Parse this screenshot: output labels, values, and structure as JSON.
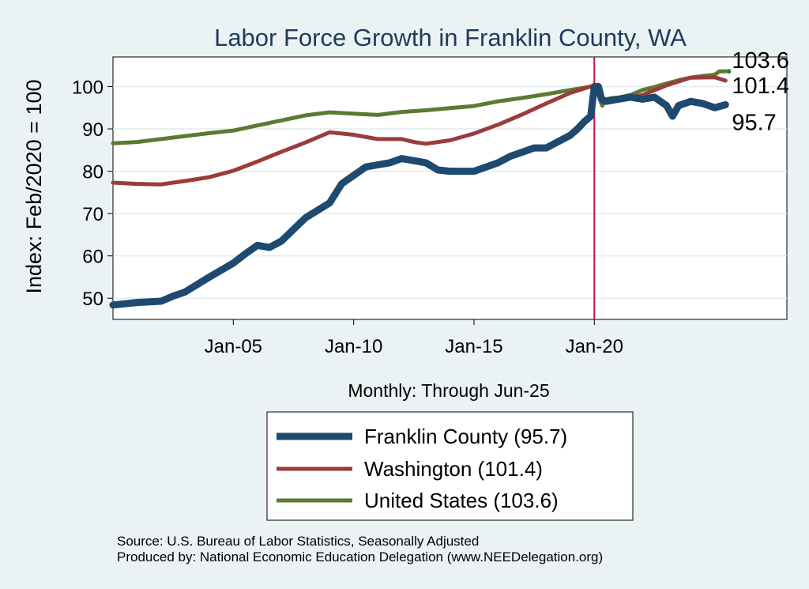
{
  "chart_data": {
    "type": "line",
    "title": "Labor Force Growth in Franklin  County, WA",
    "xlabel": "Monthly: Through Jun-25",
    "ylabel": "Index: Feb/2020 = 100",
    "ylim": [
      45,
      107
    ],
    "yticks": [
      50,
      60,
      70,
      80,
      90,
      100
    ],
    "xlim": [
      2000.0,
      2028.0
    ],
    "xticks": [
      {
        "x": 2005.0,
        "label": "Jan-05"
      },
      {
        "x": 2010.0,
        "label": "Jan-10"
      },
      {
        "x": 2015.0,
        "label": "Jan-15"
      },
      {
        "x": 2020.0,
        "label": "Jan-20"
      }
    ],
    "vline_x": 2020.0,
    "grid": "horizontal",
    "series": [
      {
        "name": "United States",
        "legend_label": "United States (103.6)",
        "end_label": "103.6",
        "color": "#5c7a32",
        "width": 5,
        "points": [
          [
            2000.0,
            86.6
          ],
          [
            2001.0,
            86.9
          ],
          [
            2002.0,
            87.6
          ],
          [
            2003.0,
            88.3
          ],
          [
            2004.0,
            89.0
          ],
          [
            2005.0,
            89.6
          ],
          [
            2006.0,
            90.8
          ],
          [
            2007.0,
            92.0
          ],
          [
            2008.0,
            93.2
          ],
          [
            2009.0,
            93.9
          ],
          [
            2010.0,
            93.6
          ],
          [
            2011.0,
            93.3
          ],
          [
            2012.0,
            94.0
          ],
          [
            2013.0,
            94.4
          ],
          [
            2014.0,
            94.9
          ],
          [
            2015.0,
            95.4
          ],
          [
            2016.0,
            96.5
          ],
          [
            2017.0,
            97.3
          ],
          [
            2018.0,
            98.2
          ],
          [
            2019.0,
            99.2
          ],
          [
            2020.0,
            100.1
          ],
          [
            2020.17,
            98.0
          ],
          [
            2020.33,
            95.5
          ],
          [
            2020.5,
            97.0
          ],
          [
            2020.75,
            97.3
          ],
          [
            2021.0,
            97.4
          ],
          [
            2021.5,
            98.0
          ],
          [
            2022.0,
            99.2
          ],
          [
            2022.5,
            99.9
          ],
          [
            2023.0,
            100.7
          ],
          [
            2023.5,
            101.5
          ],
          [
            2024.0,
            102.1
          ],
          [
            2024.5,
            102.5
          ],
          [
            2025.0,
            102.8
          ],
          [
            2025.2,
            103.6
          ],
          [
            2025.45,
            103.6
          ]
        ]
      },
      {
        "name": "Washington",
        "legend_label": "Washington (101.4)",
        "end_label": "101.4",
        "color": "#9b3b3b",
        "width": 5,
        "points": [
          [
            2000.0,
            77.3
          ],
          [
            2001.0,
            77.0
          ],
          [
            2002.0,
            76.9
          ],
          [
            2003.0,
            77.7
          ],
          [
            2004.0,
            78.6
          ],
          [
            2005.0,
            80.1
          ],
          [
            2006.0,
            82.3
          ],
          [
            2007.0,
            84.6
          ],
          [
            2008.0,
            86.8
          ],
          [
            2009.0,
            89.2
          ],
          [
            2010.0,
            88.6
          ],
          [
            2011.0,
            87.6
          ],
          [
            2012.0,
            87.6
          ],
          [
            2012.5,
            86.9
          ],
          [
            2013.0,
            86.5
          ],
          [
            2014.0,
            87.3
          ],
          [
            2015.0,
            88.9
          ],
          [
            2016.0,
            91.0
          ],
          [
            2017.0,
            93.4
          ],
          [
            2018.0,
            96.0
          ],
          [
            2019.0,
            98.5
          ],
          [
            2020.0,
            100.3
          ],
          [
            2020.17,
            99.0
          ],
          [
            2020.33,
            96.3
          ],
          [
            2021.0,
            96.8
          ],
          [
            2022.0,
            98.0
          ],
          [
            2023.0,
            100.3
          ],
          [
            2024.0,
            102.1
          ],
          [
            2025.0,
            102.2
          ],
          [
            2025.45,
            101.4
          ]
        ]
      },
      {
        "name": "Franklin County",
        "legend_label": "Franklin  County (95.7)",
        "end_label": "95.7",
        "color": "#1e4a70",
        "width": 9,
        "points": [
          [
            2000.0,
            48.4
          ],
          [
            2001.0,
            49.0
          ],
          [
            2002.0,
            49.3
          ],
          [
            2002.5,
            50.5
          ],
          [
            2003.0,
            51.5
          ],
          [
            2004.0,
            55.0
          ],
          [
            2005.0,
            58.3
          ],
          [
            2005.5,
            60.5
          ],
          [
            2006.0,
            62.5
          ],
          [
            2006.5,
            62.0
          ],
          [
            2007.0,
            63.5
          ],
          [
            2008.0,
            69.0
          ],
          [
            2009.0,
            72.5
          ],
          [
            2009.5,
            77.0
          ],
          [
            2010.0,
            79.0
          ],
          [
            2010.5,
            81.0
          ],
          [
            2011.0,
            81.5
          ],
          [
            2011.5,
            82.0
          ],
          [
            2012.0,
            83.0
          ],
          [
            2012.5,
            82.5
          ],
          [
            2013.0,
            82.0
          ],
          [
            2013.5,
            80.3
          ],
          [
            2014.0,
            80.0
          ],
          [
            2014.5,
            80.0
          ],
          [
            2015.0,
            80.0
          ],
          [
            2015.5,
            81.0
          ],
          [
            2016.0,
            82.0
          ],
          [
            2016.5,
            83.5
          ],
          [
            2017.0,
            84.5
          ],
          [
            2017.5,
            85.5
          ],
          [
            2018.0,
            85.5
          ],
          [
            2018.5,
            87.0
          ],
          [
            2019.0,
            88.5
          ],
          [
            2019.3,
            90.0
          ],
          [
            2019.6,
            91.8
          ],
          [
            2019.85,
            93.0
          ],
          [
            2020.0,
            100.0
          ],
          [
            2020.17,
            100.0
          ],
          [
            2020.3,
            97.0
          ],
          [
            2020.5,
            96.5
          ],
          [
            2021.0,
            97.0
          ],
          [
            2021.5,
            97.5
          ],
          [
            2022.0,
            97.0
          ],
          [
            2022.5,
            97.5
          ],
          [
            2023.0,
            95.5
          ],
          [
            2023.25,
            93.0
          ],
          [
            2023.5,
            95.5
          ],
          [
            2024.0,
            96.5
          ],
          [
            2024.5,
            96.0
          ],
          [
            2025.0,
            95.0
          ],
          [
            2025.45,
            95.7
          ]
        ]
      }
    ],
    "legend_order": [
      "Franklin County",
      "Washington",
      "United States"
    ],
    "legend_position": "bottom-center"
  },
  "footer": {
    "source": "Source: U.S. Bureau of Labor Statistics, Seasonally Adjusted",
    "produced_by": "Produced by: National Economic Education Delegation (www.NEEDelegation.org)"
  }
}
